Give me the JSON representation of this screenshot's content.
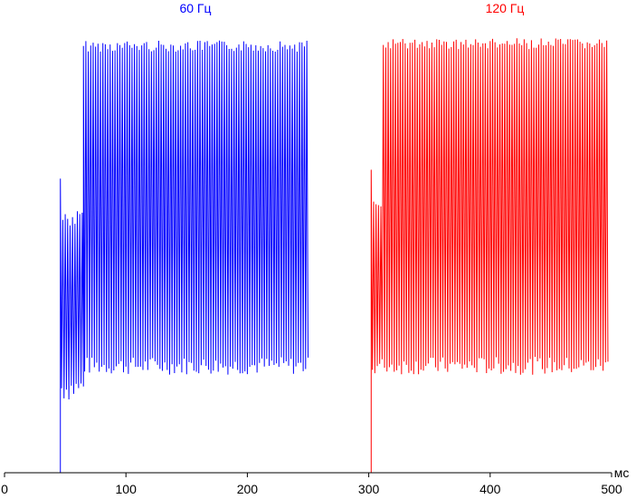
{
  "chart_data": {
    "type": "line",
    "xlabel": "мс",
    "ylabel": "",
    "xlim": [
      0,
      500
    ],
    "ylim": [
      0,
      1
    ],
    "x_ticks": [
      "0",
      "100",
      "200",
      "300",
      "400",
      "500"
    ],
    "grid": false,
    "series": [
      {
        "name": "60 Гц",
        "color": "#0000ff",
        "x_range": [
          0,
          250
        ],
        "baseline": 0.0,
        "rise_x": 46,
        "partial_end_x": 65,
        "partial_high": 0.66,
        "partial_low": 0.16,
        "full_start_x": 65,
        "full_end_x": 250,
        "flicker_period": 2.0,
        "full_high": 0.97,
        "full_low": 0.22
      },
      {
        "name": "120 Гц",
        "color": "#ff0000",
        "x_range": [
          250,
          500
        ],
        "baseline": 0.0,
        "rise_x": 302,
        "partial_end_x": 312,
        "partial_high": 0.68,
        "partial_low": 0.2,
        "full_start_x": 312,
        "full_end_x": 496,
        "flicker_period": 2.0,
        "full_high": 0.975,
        "full_low": 0.22
      }
    ]
  }
}
